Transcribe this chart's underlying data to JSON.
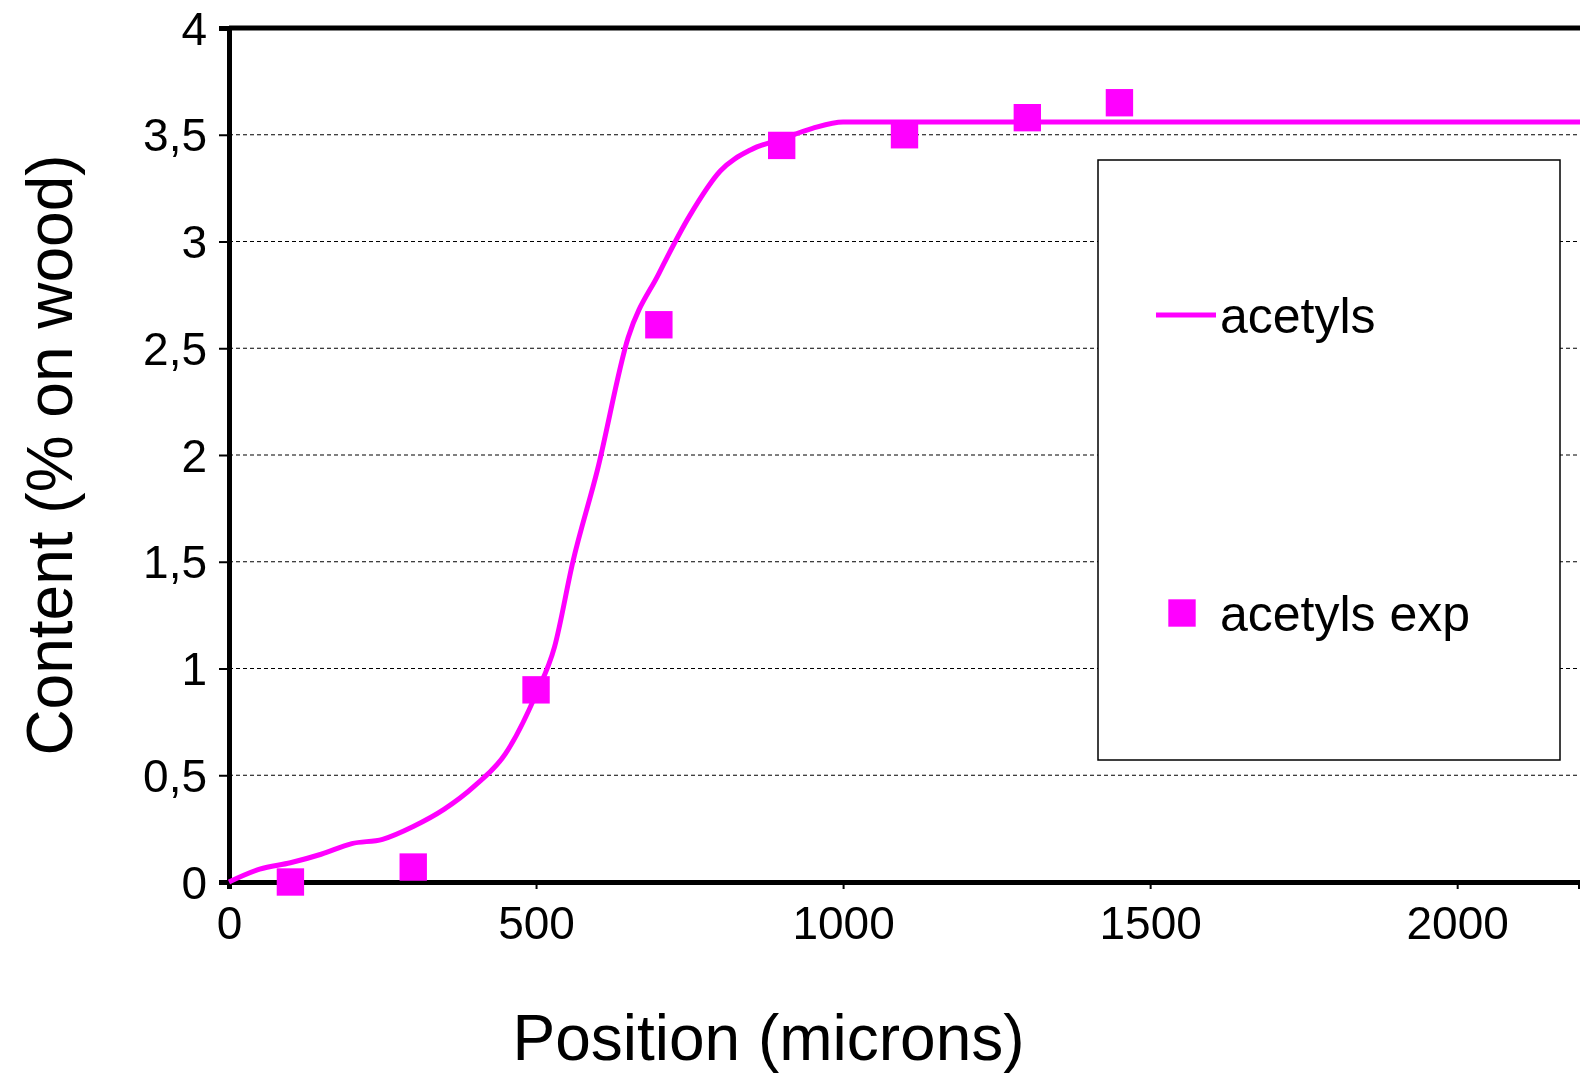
{
  "chart_data": {
    "type": "line",
    "xlabel": "Position (microns)",
    "ylabel": "Content (% on wood)",
    "xlim": [
      0,
      2200
    ],
    "xticks": [
      0,
      500,
      1000,
      1500,
      2000
    ],
    "ylim": [
      0,
      4
    ],
    "yticks": [
      0,
      {
        "value": 0.5,
        "label": "0,5"
      },
      1,
      {
        "value": 1.5,
        "label": "1,5"
      },
      2,
      {
        "value": 2.5,
        "label": "2,5"
      },
      3,
      {
        "value": 3.5,
        "label": "3,5"
      },
      4
    ],
    "grid": "y",
    "legend": "right",
    "series": [
      {
        "name": "acetyls",
        "color": "#ff00ff",
        "marker": "none",
        "line_style": "solid",
        "x": [
          0,
          50,
          100,
          150,
          200,
          250,
          300,
          350,
          400,
          450,
          500,
          530,
          560,
          600,
          650,
          700,
          750,
          800,
          850,
          900,
          950,
          1000,
          1050,
          2200
        ],
        "values": [
          0,
          0.06,
          0.09,
          0.13,
          0.18,
          0.2,
          0.26,
          0.34,
          0.45,
          0.6,
          0.88,
          1.1,
          1.5,
          1.93,
          2.55,
          2.85,
          3.12,
          3.33,
          3.43,
          3.48,
          3.53,
          3.56,
          3.56,
          3.56
        ]
      },
      {
        "name": "acetyls exp",
        "type": "scatter",
        "color": "#ff00ff",
        "marker": "square",
        "x": [
          100,
          300,
          500,
          700,
          900,
          1100,
          1300,
          1450
        ],
        "values": [
          0,
          0.07,
          0.9,
          2.61,
          3.45,
          3.5,
          3.58,
          3.65
        ]
      }
    ]
  }
}
